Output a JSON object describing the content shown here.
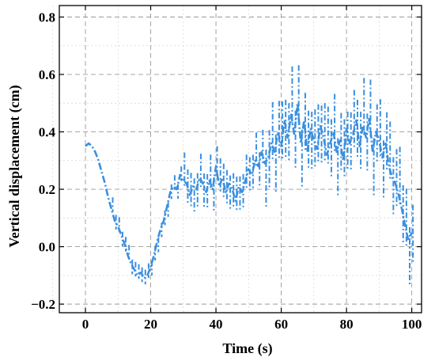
{
  "chart_data": {
    "type": "line",
    "title": "",
    "xlabel": "Time (s)",
    "ylabel": "Vertical  displacement (cm)",
    "xlim": [
      -8,
      103
    ],
    "ylim": [
      -0.23,
      0.84
    ],
    "xticks": [
      0,
      20,
      40,
      60,
      80,
      100
    ],
    "yticks": [
      -0.2,
      0.0,
      0.2,
      0.4,
      0.6,
      0.8
    ],
    "xtick_labels": [
      "0",
      "20",
      "40",
      "60",
      "80",
      "100"
    ],
    "ytick_labels": [
      "−0.2",
      "0.0",
      "0.2",
      "0.4",
      "0.6",
      "0.8"
    ],
    "grid": true,
    "minor_grid": true,
    "line_style": "dash-dot",
    "series": [
      {
        "color": "#3a8fe0",
        "x": [
          0,
          1,
          2,
          3,
          4,
          5,
          6,
          7,
          8,
          9,
          10,
          11,
          12,
          13,
          14,
          15,
          16,
          17,
          18,
          19,
          20,
          21,
          22,
          23,
          24,
          25,
          26,
          27,
          28,
          29,
          30,
          31,
          32,
          33,
          34,
          35,
          36,
          37,
          38,
          39,
          40,
          41,
          42,
          43,
          44,
          45,
          46,
          47,
          48,
          49,
          50,
          51,
          52,
          53,
          54,
          55,
          56,
          57,
          58,
          59,
          60,
          61,
          62,
          63,
          64,
          65,
          66,
          67,
          68,
          69,
          70,
          71,
          72,
          73,
          74,
          75,
          76,
          77,
          78,
          79,
          80,
          81,
          82,
          83,
          84,
          85,
          86,
          87,
          88,
          89,
          90,
          91,
          92,
          93,
          94,
          95,
          96,
          97,
          98,
          99,
          100
        ],
        "y": [
          0.35,
          0.36,
          0.35,
          0.33,
          0.3,
          0.26,
          0.22,
          0.17,
          0.13,
          0.09,
          0.07,
          0.04,
          0.01,
          -0.03,
          -0.06,
          -0.08,
          -0.1,
          -0.09,
          -0.11,
          -0.1,
          -0.07,
          -0.03,
          0.02,
          0.06,
          0.09,
          0.14,
          0.19,
          0.21,
          0.2,
          0.25,
          0.23,
          0.22,
          0.18,
          0.21,
          0.2,
          0.24,
          0.22,
          0.19,
          0.23,
          0.2,
          0.28,
          0.21,
          0.24,
          0.19,
          0.22,
          0.2,
          0.16,
          0.21,
          0.19,
          0.23,
          0.27,
          0.25,
          0.3,
          0.28,
          0.33,
          0.29,
          0.31,
          0.36,
          0.33,
          0.4,
          0.35,
          0.44,
          0.38,
          0.46,
          0.39,
          0.5,
          0.36,
          0.44,
          0.33,
          0.41,
          0.37,
          0.34,
          0.42,
          0.38,
          0.32,
          0.36,
          0.4,
          0.33,
          0.37,
          0.3,
          0.41,
          0.36,
          0.39,
          0.44,
          0.35,
          0.42,
          0.38,
          0.45,
          0.33,
          0.4,
          0.37,
          0.31,
          0.36,
          0.28,
          0.24,
          0.22,
          0.18,
          0.13,
          0.07,
          0.02,
          0.05
        ]
      }
    ]
  }
}
